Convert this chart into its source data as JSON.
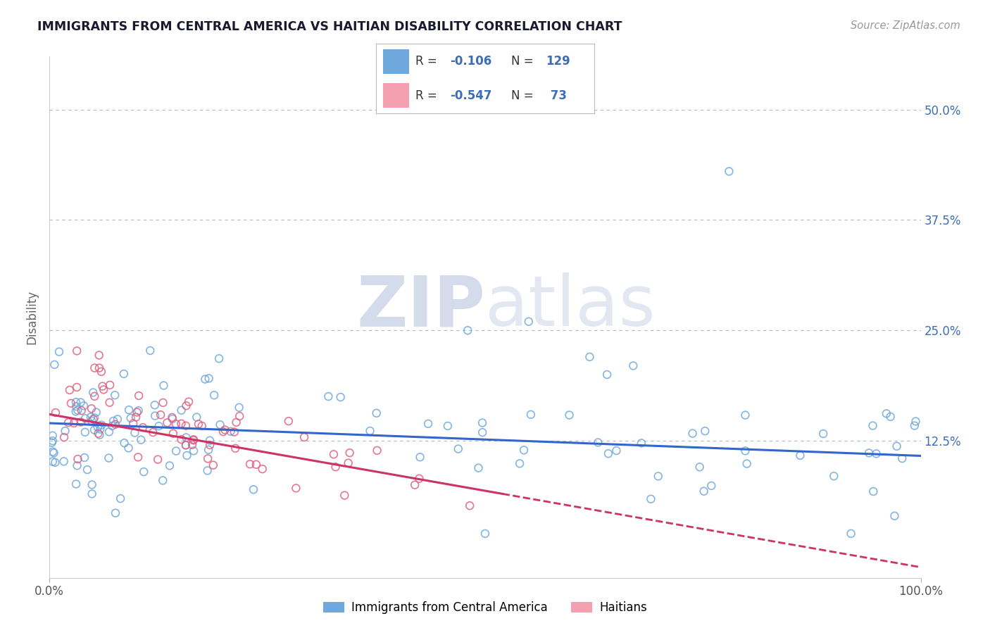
{
  "title": "IMMIGRANTS FROM CENTRAL AMERICA VS HAITIAN DISABILITY CORRELATION CHART",
  "source": "Source: ZipAtlas.com",
  "ylabel": "Disability",
  "ytick_vals": [
    0.125,
    0.25,
    0.375,
    0.5
  ],
  "ytick_labels": [
    "12.5%",
    "25.0%",
    "37.5%",
    "50.0%"
  ],
  "xlim": [
    0.0,
    1.0
  ],
  "ylim": [
    -0.03,
    0.56
  ],
  "color_blue": "#6fa8dc",
  "color_blue_line": "#3366cc",
  "color_pink": "#e06080",
  "color_pink_line": "#cc3366",
  "color_blue_text": "#3d6eb5",
  "watermark_color": "#d0d8e8",
  "background_color": "#ffffff",
  "grid_color": "#b0b8c8",
  "title_color": "#1a1a2e",
  "source_color": "#999999",
  "legend_r1": "-0.106",
  "legend_n1": "129",
  "legend_r2": "-0.547",
  "legend_n2": " 73"
}
